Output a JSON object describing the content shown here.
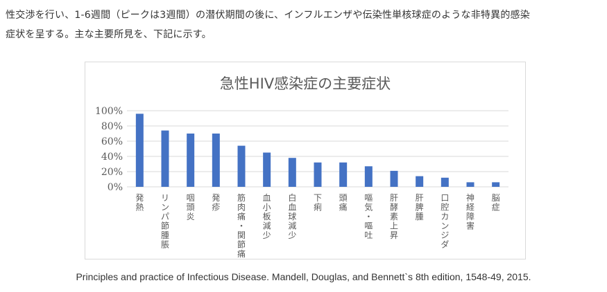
{
  "intro": {
    "line1": "性交渉を行い、1-6週間（ピークは3週間）の潜伏期間の後に、インフルエンザや伝染性単核球症のような非特異的感染",
    "line2": "症状を呈する。主な主要所見を、下記に示す。"
  },
  "chart_data": {
    "type": "bar",
    "title": "急性HIV感染症の主要症状",
    "categories": [
      "発熱",
      "リンパ節腫脹",
      "咽頭炎",
      "発疹",
      "筋肉痛・関節痛",
      "血小板減少",
      "白血球減少",
      "下痢",
      "頭痛",
      "嘔気・嘔吐",
      "肝酵素上昇",
      "肝脾腫",
      "口腔カンジダ",
      "神経障害",
      "脳症"
    ],
    "values": [
      96,
      74,
      70,
      70,
      54,
      45,
      38,
      32,
      32,
      27,
      21,
      14,
      12,
      6,
      6
    ],
    "yticks": [
      "0%",
      "20%",
      "40%",
      "60%",
      "80%",
      "100%"
    ],
    "ylim": [
      0,
      100
    ],
    "xlabel": "",
    "ylabel": "",
    "grid": true,
    "bar_color": "#4472c4"
  },
  "citation": "Principles and practice of Infectious Disease. Mandell, Douglas, and Bennett`s 8th edition, 1548-49, 2015."
}
